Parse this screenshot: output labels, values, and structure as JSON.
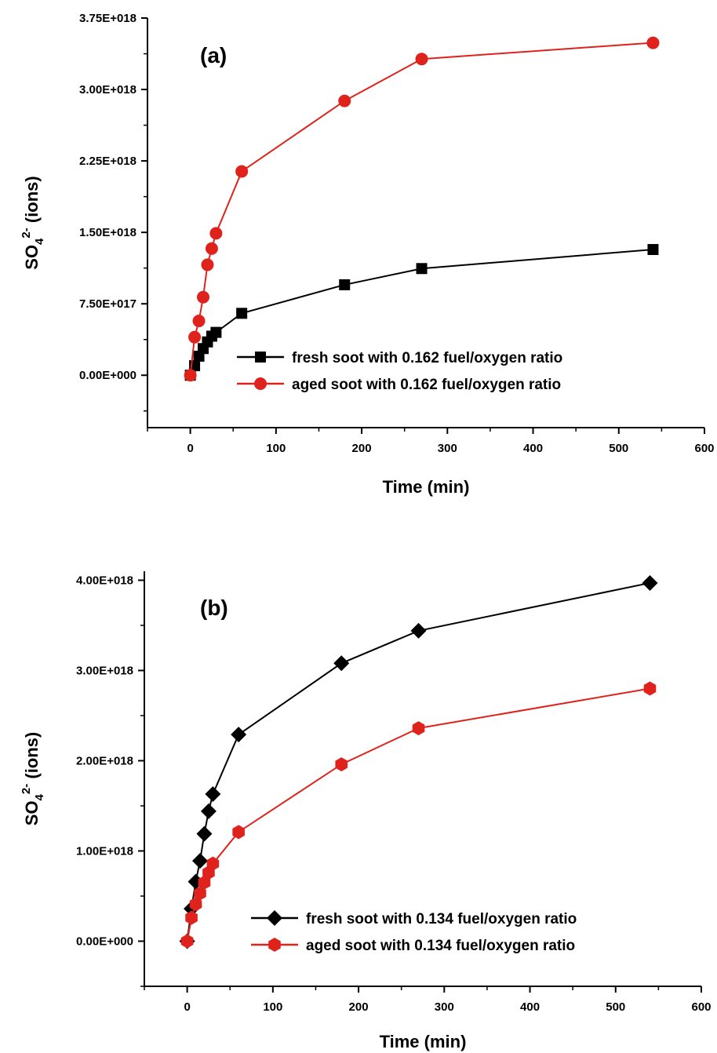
{
  "chart_data": [
    {
      "type": "line",
      "panel_label": "(a)",
      "xlabel": "Time (min)",
      "ylabel": {
        "main": "SO",
        "sub": "4",
        "sup": "2-",
        "tail": " (ions)"
      },
      "xlim": [
        -50,
        600
      ],
      "ylim": [
        -5.5e+17,
        3.75e+18
      ],
      "xticks": [
        0,
        100,
        200,
        300,
        400,
        500,
        600
      ],
      "xtick_labels": [
        "0",
        "100",
        "200",
        "300",
        "400",
        "500",
        "600"
      ],
      "yticks": [
        0,
        7.5e+17,
        1.5e+18,
        2.25e+18,
        3e+18,
        3.75e+18
      ],
      "ytick_labels": [
        "0.00E+000",
        "7.50E+017",
        "1.50E+018",
        "2.25E+018",
        "3.00E+018",
        "3.75E+018"
      ],
      "legend_position": "bottom-right",
      "grid": false,
      "series": [
        {
          "name": "fresh soot with 0.162 fuel/oxygen ratio",
          "color": "#000000",
          "marker": "square",
          "x": [
            0,
            5,
            10,
            15,
            20,
            25,
            30,
            60,
            180,
            270,
            540
          ],
          "y": [
            0,
            1e+17,
            2e+17,
            2.8e+17,
            3.5e+17,
            4.1e+17,
            4.5e+17,
            6.5e+17,
            9.5e+17,
            1.12e+18,
            1.32e+18
          ]
        },
        {
          "name": "aged soot with 0.162 fuel/oxygen ratio",
          "color": "#e0221c",
          "marker": "circle",
          "x": [
            0,
            5,
            10,
            15,
            20,
            25,
            30,
            60,
            180,
            270,
            540
          ],
          "y": [
            0,
            4e+17,
            5.7e+17,
            8.2e+17,
            1.16e+18,
            1.33e+18,
            1.49e+18,
            2.14e+18,
            2.88e+18,
            3.32e+18,
            3.49e+18
          ]
        }
      ]
    },
    {
      "type": "line",
      "panel_label": "(b)",
      "xlabel": "Time (min)",
      "ylabel": {
        "main": "SO",
        "sub": "4",
        "sup": "2-",
        "tail": " (ions)"
      },
      "xlim": [
        -50,
        600
      ],
      "ylim": [
        -5e+17,
        4.1e+18
      ],
      "xticks": [
        0,
        100,
        200,
        300,
        400,
        500,
        600
      ],
      "xtick_labels": [
        "0",
        "100",
        "200",
        "300",
        "400",
        "500",
        "600"
      ],
      "yticks": [
        0,
        1e+18,
        2e+18,
        3e+18,
        4e+18
      ],
      "ytick_labels": [
        "0.00E+000",
        "1.00E+018",
        "2.00E+018",
        "3.00E+018",
        "4.00E+018"
      ],
      "legend_position": "bottom-right",
      "grid": false,
      "series": [
        {
          "name": "fresh soot with 0.134 fuel/oxygen ratio",
          "color": "#000000",
          "marker": "diamond",
          "x": [
            0,
            5,
            10,
            15,
            20,
            25,
            30,
            60,
            180,
            270,
            540
          ],
          "y": [
            0,
            3.6e+17,
            6.6e+17,
            8.9e+17,
            1.19e+18,
            1.44e+18,
            1.63e+18,
            2.29e+18,
            3.08e+18,
            3.44e+18,
            3.97e+18
          ]
        },
        {
          "name": "aged soot with 0.134 fuel/oxygen ratio",
          "color": "#e0221c",
          "marker": "hexagon",
          "x": [
            0,
            5,
            10,
            15,
            20,
            25,
            30,
            60,
            180,
            270,
            540
          ],
          "y": [
            0,
            2.6e+17,
            4.1e+17,
            5.3e+17,
            6.5e+17,
            7.6e+17,
            8.6e+17,
            1.21e+18,
            1.96e+18,
            2.36e+18,
            2.8e+18
          ]
        }
      ]
    }
  ]
}
